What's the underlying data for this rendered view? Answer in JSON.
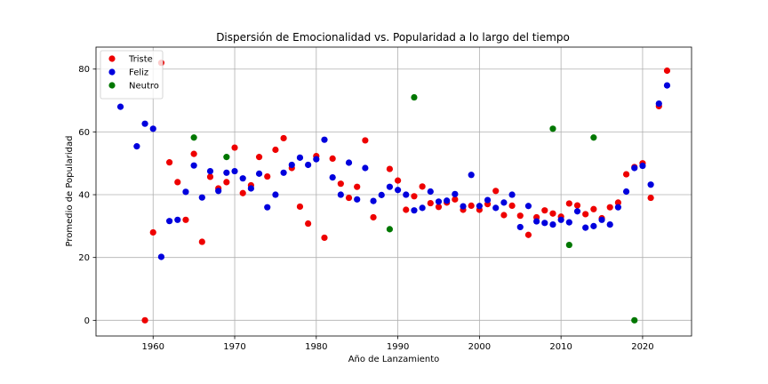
{
  "chart_data": {
    "type": "scatter",
    "title": "Dispersión de Emocionalidad vs. Popularidad a lo largo del tiempo",
    "xlabel": "Año de Lanzamiento",
    "ylabel": "Promedio de Popularidad",
    "xlim": [
      1953,
      2026
    ],
    "ylim": [
      -5,
      87
    ],
    "xticks": [
      1960,
      1970,
      1980,
      1990,
      2000,
      2010,
      2020
    ],
    "yticks": [
      0,
      20,
      40,
      60,
      80
    ],
    "grid": true,
    "legend_position": "top-left",
    "series": [
      {
        "name": "Triste",
        "color": "#ee0000",
        "points": [
          [
            1959,
            0
          ],
          [
            1960,
            28
          ],
          [
            1961,
            82
          ],
          [
            1962,
            50.3
          ],
          [
            1963,
            44
          ],
          [
            1964,
            32
          ],
          [
            1965,
            53
          ],
          [
            1966,
            25
          ],
          [
            1967,
            45.7
          ],
          [
            1968,
            42
          ],
          [
            1969,
            44
          ],
          [
            1970,
            55
          ],
          [
            1971,
            40.5
          ],
          [
            1972,
            43
          ],
          [
            1973,
            52
          ],
          [
            1974,
            45.8
          ],
          [
            1975,
            54.3
          ],
          [
            1976,
            58
          ],
          [
            1977,
            48.5
          ],
          [
            1978,
            36.2
          ],
          [
            1979,
            30.8
          ],
          [
            1980,
            52.3
          ],
          [
            1981,
            26.3
          ],
          [
            1982,
            51.5
          ],
          [
            1983,
            43.5
          ],
          [
            1984,
            39
          ],
          [
            1985,
            42.5
          ],
          [
            1986,
            57.3
          ],
          [
            1987,
            32.8
          ],
          [
            1989,
            48.2
          ],
          [
            1990,
            44.5
          ],
          [
            1991,
            35.2
          ],
          [
            1992,
            39.5
          ],
          [
            1993,
            42.6
          ],
          [
            1994,
            37.3
          ],
          [
            1995,
            36.1
          ],
          [
            1996,
            37.5
          ],
          [
            1997,
            38.5
          ],
          [
            1998,
            35.2
          ],
          [
            1999,
            36.5
          ],
          [
            2000,
            35.2
          ],
          [
            2001,
            37
          ],
          [
            2002,
            41.2
          ],
          [
            2003,
            33.5
          ],
          [
            2004,
            36.5
          ],
          [
            2005,
            33.3
          ],
          [
            2006,
            27.2
          ],
          [
            2007,
            32.8
          ],
          [
            2008,
            35
          ],
          [
            2009,
            34
          ],
          [
            2010,
            33
          ],
          [
            2011,
            37.2
          ],
          [
            2012,
            36.6
          ],
          [
            2013,
            33.8
          ],
          [
            2014,
            35.4
          ],
          [
            2015,
            32.5
          ],
          [
            2016,
            36
          ],
          [
            2017,
            37.5
          ],
          [
            2018,
            46.5
          ],
          [
            2019,
            48.8
          ],
          [
            2020,
            50
          ],
          [
            2021,
            39
          ],
          [
            2022,
            68.2
          ],
          [
            2023,
            79.5
          ]
        ]
      },
      {
        "name": "Feliz",
        "color": "#0000dd",
        "points": [
          [
            1956,
            68
          ],
          [
            1958,
            55.4
          ],
          [
            1959,
            62.6
          ],
          [
            1960,
            61
          ],
          [
            1961,
            20.2
          ],
          [
            1962,
            31.6
          ],
          [
            1963,
            32
          ],
          [
            1964,
            40.9
          ],
          [
            1965,
            49.3
          ],
          [
            1966,
            39.1
          ],
          [
            1967,
            47.5
          ],
          [
            1968,
            41.2
          ],
          [
            1969,
            47
          ],
          [
            1970,
            47.5
          ],
          [
            1971,
            45.2
          ],
          [
            1972,
            42
          ],
          [
            1973,
            46.7
          ],
          [
            1974,
            36
          ],
          [
            1975,
            40
          ],
          [
            1976,
            47
          ],
          [
            1977,
            49.5
          ],
          [
            1978,
            51.8
          ],
          [
            1979,
            49.5
          ],
          [
            1980,
            51.3
          ],
          [
            1981,
            57.5
          ],
          [
            1982,
            45.5
          ],
          [
            1983,
            40
          ],
          [
            1984,
            50.2
          ],
          [
            1985,
            38.5
          ],
          [
            1986,
            48.5
          ],
          [
            1987,
            38
          ],
          [
            1988,
            39.9
          ],
          [
            1989,
            42.5
          ],
          [
            1990,
            41.5
          ],
          [
            1991,
            40
          ],
          [
            1992,
            35
          ],
          [
            1993,
            35.8
          ],
          [
            1994,
            41
          ],
          [
            1995,
            37.8
          ],
          [
            1996,
            38.1
          ],
          [
            1997,
            40.2
          ],
          [
            1998,
            36.3
          ],
          [
            1999,
            46.3
          ],
          [
            2000,
            36.4
          ],
          [
            2001,
            38.3
          ],
          [
            2002,
            35.8
          ],
          [
            2003,
            37.5
          ],
          [
            2004,
            40
          ],
          [
            2005,
            29.7
          ],
          [
            2006,
            36.4
          ],
          [
            2007,
            31.5
          ],
          [
            2008,
            31
          ],
          [
            2009,
            30.5
          ],
          [
            2010,
            32
          ],
          [
            2011,
            31.2
          ],
          [
            2012,
            34.7
          ],
          [
            2013,
            29.5
          ],
          [
            2014,
            30
          ],
          [
            2015,
            32
          ],
          [
            2016,
            30.5
          ],
          [
            2017,
            36
          ],
          [
            2018,
            41
          ],
          [
            2019,
            48.5
          ],
          [
            2020,
            49.2
          ],
          [
            2021,
            43.2
          ],
          [
            2022,
            69
          ],
          [
            2023,
            74.8
          ]
        ]
      },
      {
        "name": "Neutro",
        "color": "#007700",
        "points": [
          [
            1965,
            58.2
          ],
          [
            1969,
            52
          ],
          [
            1989,
            29
          ],
          [
            1992,
            71
          ],
          [
            2009,
            61
          ],
          [
            2011,
            24
          ],
          [
            2014,
            58.2
          ],
          [
            2019,
            0
          ]
        ]
      }
    ]
  }
}
